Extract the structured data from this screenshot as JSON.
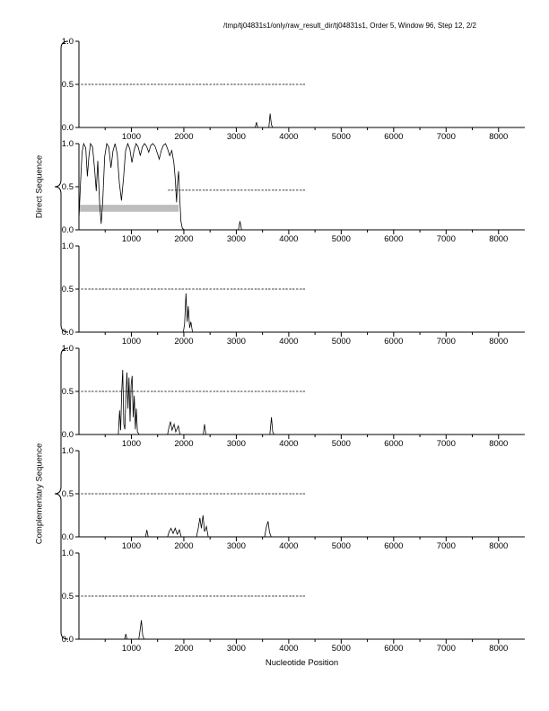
{
  "title": "/tmp/tj04831s1/only/raw_result_dir/tj04831s1, Order 5, Window 96, Step 12, 2/2",
  "xlabel": "Nucleotide Position",
  "groups": [
    {
      "label": "Direct Sequence"
    },
    {
      "label": "Complementary Sequence"
    }
  ],
  "chart_data": {
    "type": "line",
    "xlim": [
      0,
      8500
    ],
    "ylim": [
      0,
      1
    ],
    "xticks": [
      1000,
      2000,
      3000,
      4000,
      5000,
      6000,
      7000,
      8000
    ],
    "xminor": 500,
    "yticks": [
      0,
      0.5,
      1
    ],
    "grid": false,
    "dash_sets": {
      "full": [
        60,
        130,
        200,
        260,
        330,
        400,
        460,
        520,
        590,
        660,
        720,
        790,
        860,
        920,
        990,
        1050,
        1120,
        1190,
        1250,
        1320,
        1390,
        1450,
        1520,
        1580,
        1650,
        1720,
        1780,
        1850,
        1920,
        1980,
        2050,
        2110,
        2180,
        2250,
        2310,
        2380,
        2440,
        2510,
        2580,
        2640,
        2710,
        2770,
        2840,
        2910,
        2970,
        3040,
        3100,
        3170,
        3240,
        3300,
        3370,
        3430,
        3500,
        3570,
        3630,
        3700,
        3760,
        3830,
        3900,
        3960,
        4030,
        4090,
        4160,
        4230,
        4290
      ],
      "partial": [
        1720,
        1780,
        1850,
        1920,
        1980,
        2050,
        2110,
        2180,
        2250,
        2310,
        2380,
        2440,
        2510,
        2580,
        2640,
        2710,
        2770,
        2840,
        2910,
        2970,
        3040,
        3100,
        3170,
        3240,
        3300,
        3370,
        3430,
        3500,
        3570,
        3630,
        3700,
        3760,
        3830,
        3900,
        3960,
        4030,
        4090,
        4160,
        4230,
        4290
      ]
    },
    "panels": [
      {
        "name": "direct-frame-1",
        "dashes": "full",
        "dash_y": 0.5,
        "line": [
          [
            0,
            0
          ],
          [
            3360,
            0
          ],
          [
            3385,
            0.06
          ],
          [
            3410,
            0
          ],
          [
            3620,
            0
          ],
          [
            3645,
            0.16
          ],
          [
            3670,
            0.03
          ],
          [
            3695,
            0
          ],
          [
            8500,
            0
          ]
        ]
      },
      {
        "name": "direct-frame-2",
        "dashes": "partial",
        "dash_y": 0.46,
        "band": {
          "x0": 0,
          "x1": 1900,
          "y0": 0.21,
          "y1": 0.29,
          "color": "#bdbdbd"
        },
        "line": [
          [
            0,
            0.12
          ],
          [
            30,
            0.55
          ],
          [
            60,
            0.9
          ],
          [
            90,
            1.0
          ],
          [
            130,
            0.95
          ],
          [
            160,
            0.62
          ],
          [
            190,
            0.85
          ],
          [
            220,
            1.0
          ],
          [
            260,
            0.96
          ],
          [
            300,
            0.7
          ],
          [
            330,
            0.45
          ],
          [
            360,
            0.8
          ],
          [
            395,
            0.3
          ],
          [
            425,
            0.07
          ],
          [
            455,
            0.35
          ],
          [
            490,
            0.85
          ],
          [
            530,
            1.0
          ],
          [
            570,
            0.96
          ],
          [
            610,
            0.72
          ],
          [
            650,
            0.92
          ],
          [
            690,
            1.0
          ],
          [
            730,
            0.88
          ],
          [
            770,
            0.55
          ],
          [
            810,
            0.34
          ],
          [
            850,
            0.6
          ],
          [
            890,
            0.92
          ],
          [
            930,
            1.0
          ],
          [
            970,
            0.94
          ],
          [
            1010,
            0.78
          ],
          [
            1050,
            0.92
          ],
          [
            1090,
            1.0
          ],
          [
            1130,
            0.96
          ],
          [
            1170,
            0.86
          ],
          [
            1210,
            0.96
          ],
          [
            1250,
            1.0
          ],
          [
            1290,
            0.97
          ],
          [
            1330,
            0.9
          ],
          [
            1370,
            0.98
          ],
          [
            1410,
            1.0
          ],
          [
            1450,
            0.97
          ],
          [
            1490,
            0.9
          ],
          [
            1530,
            0.82
          ],
          [
            1570,
            0.92
          ],
          [
            1610,
            0.98
          ],
          [
            1650,
            1.0
          ],
          [
            1690,
            0.94
          ],
          [
            1730,
            0.86
          ],
          [
            1770,
            0.92
          ],
          [
            1810,
            0.78
          ],
          [
            1835,
            0.6
          ],
          [
            1860,
            0.32
          ],
          [
            1880,
            0.55
          ],
          [
            1900,
            0.68
          ],
          [
            1920,
            0.38
          ],
          [
            1945,
            0.1
          ],
          [
            1970,
            0.02
          ],
          [
            2010,
            0
          ],
          [
            3040,
            0
          ],
          [
            3070,
            0.1
          ],
          [
            3100,
            0
          ],
          [
            8500,
            0
          ]
        ]
      },
      {
        "name": "direct-frame-3",
        "dashes": "full",
        "dash_y": 0.5,
        "line": [
          [
            0,
            0
          ],
          [
            1990,
            0
          ],
          [
            2015,
            0.1
          ],
          [
            2040,
            0.45
          ],
          [
            2065,
            0.12
          ],
          [
            2085,
            0.3
          ],
          [
            2110,
            0.05
          ],
          [
            2135,
            0.12
          ],
          [
            2165,
            0
          ],
          [
            8500,
            0
          ]
        ]
      },
      {
        "name": "complementary-frame-1",
        "dashes": "full",
        "dash_y": 0.5,
        "line": [
          [
            0,
            0
          ],
          [
            750,
            0
          ],
          [
            775,
            0.28
          ],
          [
            795,
            0.05
          ],
          [
            815,
            0.5
          ],
          [
            835,
            0.75
          ],
          [
            855,
            0.12
          ],
          [
            875,
            0.06
          ],
          [
            895,
            0.42
          ],
          [
            915,
            0.72
          ],
          [
            935,
            0.3
          ],
          [
            955,
            0.66
          ],
          [
            975,
            0.15
          ],
          [
            995,
            0.58
          ],
          [
            1015,
            0.68
          ],
          [
            1035,
            0.2
          ],
          [
            1055,
            0.45
          ],
          [
            1075,
            0.06
          ],
          [
            1095,
            0.3
          ],
          [
            1115,
            0.03
          ],
          [
            1150,
            0
          ],
          [
            1690,
            0
          ],
          [
            1715,
            0.08
          ],
          [
            1745,
            0.15
          ],
          [
            1775,
            0.05
          ],
          [
            1815,
            0.12
          ],
          [
            1845,
            0.03
          ],
          [
            1895,
            0.1
          ],
          [
            1925,
            0
          ],
          [
            2370,
            0
          ],
          [
            2395,
            0.12
          ],
          [
            2420,
            0
          ],
          [
            3640,
            0
          ],
          [
            3670,
            0.2
          ],
          [
            3695,
            0.03
          ],
          [
            3720,
            0
          ],
          [
            8500,
            0
          ]
        ]
      },
      {
        "name": "complementary-frame-2",
        "dashes": "full",
        "dash_y": 0.5,
        "line": [
          [
            0,
            0
          ],
          [
            1270,
            0
          ],
          [
            1295,
            0.08
          ],
          [
            1320,
            0
          ],
          [
            1690,
            0
          ],
          [
            1720,
            0.06
          ],
          [
            1755,
            0.1
          ],
          [
            1795,
            0.04
          ],
          [
            1835,
            0.1
          ],
          [
            1875,
            0.03
          ],
          [
            1915,
            0.08
          ],
          [
            1950,
            0
          ],
          [
            2240,
            0
          ],
          [
            2275,
            0.1
          ],
          [
            2305,
            0.22
          ],
          [
            2335,
            0.1
          ],
          [
            2365,
            0.25
          ],
          [
            2395,
            0.06
          ],
          [
            2430,
            0.12
          ],
          [
            2465,
            0
          ],
          [
            3540,
            0
          ],
          [
            3575,
            0.12
          ],
          [
            3605,
            0.18
          ],
          [
            3635,
            0.05
          ],
          [
            3665,
            0
          ],
          [
            8500,
            0
          ]
        ]
      },
      {
        "name": "complementary-frame-3",
        "dashes": "full",
        "dash_y": 0.5,
        "line": [
          [
            0,
            0
          ],
          [
            870,
            0
          ],
          [
            895,
            0.06
          ],
          [
            915,
            0
          ],
          [
            1140,
            0
          ],
          [
            1165,
            0.1
          ],
          [
            1190,
            0.22
          ],
          [
            1215,
            0.05
          ],
          [
            1240,
            0
          ],
          [
            8500,
            0
          ]
        ]
      }
    ]
  }
}
